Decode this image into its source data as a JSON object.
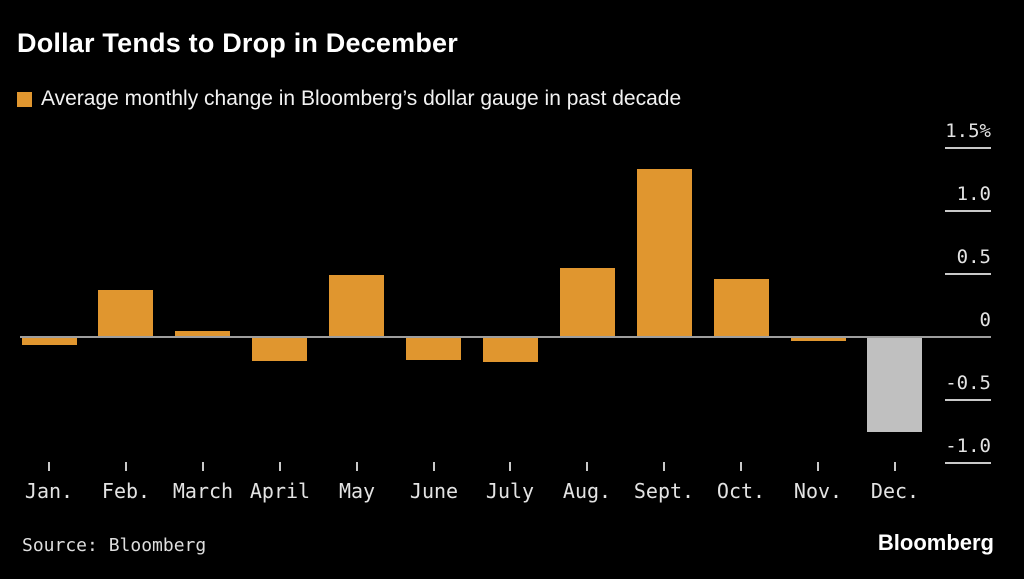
{
  "header": {
    "title": "Dollar Tends to Drop in December",
    "legend_label": "Average monthly change in Bloomberg’s dollar gauge in past decade"
  },
  "footer": {
    "source": "Source: Bloomberg",
    "logo": "Bloomberg"
  },
  "colors": {
    "background": "#000000",
    "bar_orange": "#E0962F",
    "bar_gray": "#C0C0C0",
    "axis_line": "#9E9E9E",
    "tick_dash": "#C9C9C9",
    "label_text": "#E3E3E3"
  },
  "chart_data": {
    "type": "bar",
    "title": "Dollar Tends to Drop in December",
    "legend": "Average monthly change in Bloomberg’s dollar gauge in past decade",
    "unit": "%",
    "categories": [
      "Jan.",
      "Feb.",
      "March",
      "April",
      "May",
      "June",
      "July",
      "Aug.",
      "Sept.",
      "Oct.",
      "Nov.",
      "Dec."
    ],
    "values": [
      -0.06,
      0.37,
      0.05,
      -0.19,
      0.49,
      -0.18,
      -0.2,
      0.55,
      1.33,
      0.46,
      -0.03,
      -0.75
    ],
    "highlight_index": 11,
    "highlight_note": "December bar shown in gray, all others orange",
    "y_ticks": [
      "1.5%",
      "1.0",
      "0.5",
      "0",
      "-0.5",
      "-1.0"
    ],
    "y_tick_values": [
      1.5,
      1.0,
      0.5,
      0,
      -0.5,
      -1.0
    ],
    "ylim": [
      -1.1,
      1.65
    ],
    "grid": false,
    "legend_position": "top-left",
    "xlabel": "",
    "ylabel": ""
  }
}
